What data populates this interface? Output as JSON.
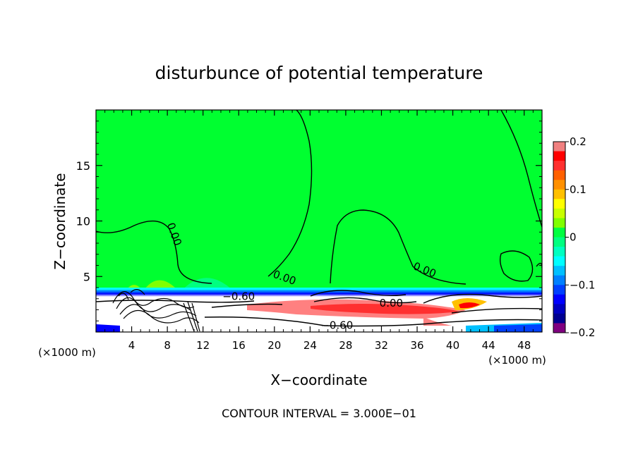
{
  "chart_data": {
    "type": "heatmap",
    "title": "disturbunce of potential temperature",
    "xlabel": "X−coordinate",
    "ylabel": "Z−coordinate",
    "x_unit_left": "(×1000 m)",
    "x_unit_right": "(×1000 m)",
    "xlim": [
      0,
      50
    ],
    "ylim": [
      0,
      20
    ],
    "x_ticks": [
      4,
      8,
      12,
      16,
      20,
      24,
      28,
      32,
      36,
      40,
      44,
      48
    ],
    "x_tick_labels": [
      "4",
      "8",
      "12",
      "16",
      "20",
      "24",
      "28",
      "32",
      "36",
      "40",
      "44",
      "48"
    ],
    "y_ticks": [
      5,
      10,
      15
    ],
    "y_tick_labels": [
      "5",
      "10",
      "15"
    ],
    "colorbar": {
      "range": [
        -0.2,
        0.2
      ],
      "tick_values": [
        0.2,
        0.1,
        0,
        -0.1,
        -0.2
      ],
      "tick_labels": [
        "0.2",
        "0.1",
        "0",
        "−0.1",
        "−0.2"
      ],
      "colors": [
        "#f08080",
        "#ff0000",
        "#ff3030",
        "#ff6000",
        "#ff9000",
        "#ffc000",
        "#ffff00",
        "#c8ff00",
        "#80ff00",
        "#00ff40",
        "#00ff80",
        "#00ffc0",
        "#00ffff",
        "#00c0ff",
        "#0080ff",
        "#0040ff",
        "#0000ff",
        "#0000c0",
        "#000090",
        "#800080"
      ]
    },
    "contour_labels": [
      {
        "text": "0.00",
        "x": 8.4,
        "z": 8.7,
        "rotate": 70
      },
      {
        "text": "0.00",
        "x": 21.0,
        "z": 4.6,
        "rotate": 20
      },
      {
        "text": "0.00",
        "x": 36.7,
        "z": 5.3,
        "rotate": 22
      },
      {
        "text": "0.00",
        "x": 33.1,
        "z": 2.3,
        "rotate": 0
      },
      {
        "text": "−0.60",
        "x": 16.0,
        "z": 2.9,
        "rotate": 0
      },
      {
        "text": "−0.60",
        "x": 27.0,
        "z": 0.3,
        "rotate": 0
      }
    ],
    "annotation": "CONTOUR INTERVAL = 3.000E−01"
  }
}
